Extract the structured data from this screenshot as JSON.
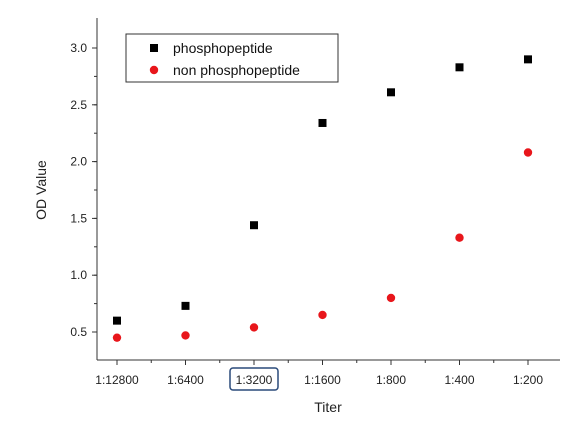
{
  "chart_data": {
    "type": "scatter",
    "xlabel": "Titer",
    "ylabel": "OD Value",
    "categories": [
      "1:12800",
      "1:6400",
      "1:3200",
      "1:1600",
      "1:800",
      "1:400",
      "1:200"
    ],
    "highlighted_category": "1:3200",
    "ylim": [
      0.3,
      3.25
    ],
    "yticks": [
      "0.5",
      "1.0",
      "1.5",
      "2.0",
      "2.5",
      "3.0"
    ],
    "grid": false,
    "legend_position": "top-left",
    "series": [
      {
        "name": "phosphopeptide",
        "marker": "square",
        "color": "#000000",
        "values": [
          0.6,
          0.73,
          1.44,
          2.34,
          2.61,
          2.83,
          2.9
        ]
      },
      {
        "name": "non phosphopeptide",
        "marker": "circle",
        "color": "#e8161b",
        "values": [
          0.45,
          0.47,
          0.54,
          0.65,
          0.8,
          1.33,
          2.08
        ]
      }
    ],
    "highlight_color": "#2a4a7a"
  }
}
